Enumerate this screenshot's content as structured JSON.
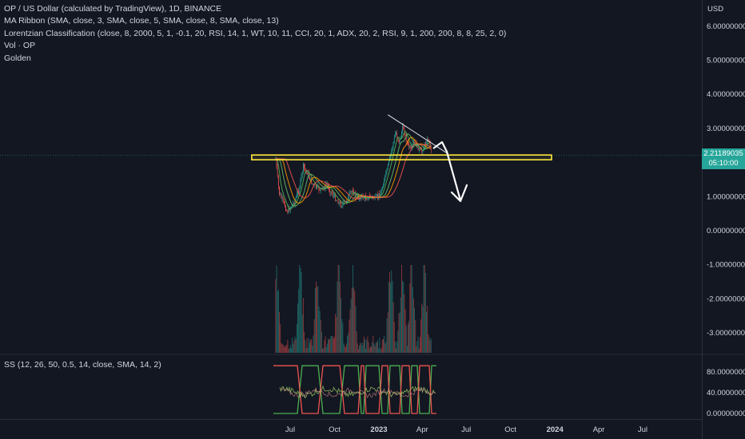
{
  "legend": {
    "symbol": "OP / US Dollar (calculated by TradingView), 1D, BINANCE",
    "ma_ribbon": "MA Ribbon (SMA, close, 3, SMA, close, 5, SMA, close, 8, SMA, close, 13)",
    "lorentzian": "Lorentzian Classification (close, 8, 2000, 5, 1, -0.1, 20, RSI, 14, 1, WT, 10, 11, CCI, 20, 1, ADX, 20, 2, RSI, 9, 1, 200, 200, 8, 8, 25, 2, 0)",
    "volume": "Vol · OP",
    "golden": "Golden"
  },
  "oscillator_legend": "SS (12, 26, 50, 0.5, 14, close, SMA, 14, 2)",
  "price_axis": {
    "currency": "USD",
    "ticks": [
      "6.00000000",
      "5.00000000",
      "4.00000000",
      "3.00000000",
      "1.00000000",
      "0.00000000",
      "-1.00000000",
      "-2.00000000",
      "-3.00000000"
    ],
    "tick_values": [
      6,
      5,
      4,
      3,
      1,
      0,
      -1,
      -2,
      -3
    ]
  },
  "oscillator_axis": {
    "ticks": [
      "80.00000000",
      "40.00000000",
      "0.00000000"
    ],
    "tick_values": [
      80,
      40,
      0
    ]
  },
  "current_price": {
    "value": "2.21189035",
    "countdown": "05:10:00"
  },
  "time_axis": {
    "labels": [
      "Jul",
      "Oct",
      "2023",
      "Apr",
      "Jul",
      "Oct",
      "2024",
      "Apr",
      "Jul"
    ],
    "bold": [
      false,
      false,
      true,
      false,
      false,
      false,
      true,
      false,
      false
    ]
  },
  "colors": {
    "background": "#131722",
    "up": "#26a69a",
    "down": "#ef5350",
    "zone": "#ffeb3b",
    "annotation": "#ffffff"
  },
  "chart_data": {
    "type": "candlestick",
    "instrument": "OP / US Dollar",
    "interval": "1D",
    "exchange": "BINANCE",
    "price_range": [
      -3.3,
      6.3
    ],
    "current_price": 2.21189035,
    "price_path": {
      "dates": [
        "2022-06-01",
        "2022-06-08",
        "2022-06-18",
        "2022-06-25",
        "2022-07-02",
        "2022-07-10",
        "2022-07-20",
        "2022-07-28",
        "2022-08-05",
        "2022-08-15",
        "2022-08-25",
        "2022-09-05",
        "2022-09-15",
        "2022-09-25",
        "2022-10-05",
        "2022-10-15",
        "2022-10-25",
        "2022-11-01",
        "2022-11-08",
        "2022-11-15",
        "2022-11-25",
        "2022-12-05",
        "2022-12-15",
        "2022-12-25",
        "2023-01-05",
        "2023-01-12",
        "2023-01-20",
        "2023-01-28",
        "2023-02-05",
        "2023-02-12",
        "2023-02-20",
        "2023-02-28",
        "2023-03-08",
        "2023-03-15",
        "2023-03-22",
        "2023-03-30",
        "2023-04-07",
        "2023-04-14",
        "2023-04-20"
      ],
      "close": [
        2.1,
        1.1,
        0.8,
        0.55,
        0.7,
        0.85,
        1.25,
        1.9,
        1.7,
        1.4,
        1.25,
        1.2,
        1.35,
        1.1,
        0.9,
        0.75,
        0.85,
        1.05,
        1.2,
        0.95,
        1.0,
        0.95,
        1.0,
        0.95,
        1.1,
        1.5,
        1.9,
        2.4,
        2.9,
        2.6,
        3.05,
        2.6,
        2.35,
        2.6,
        2.45,
        2.3,
        2.55,
        2.7,
        2.3
      ]
    },
    "resistance_zone": [
      2.08,
      2.22
    ],
    "trendline": {
      "from": [
        "2023-01-28",
        3.4
      ],
      "to": [
        "2023-05-25",
        2.25
      ]
    },
    "volume_peak_dates": [
      "2022-06-02",
      "2022-07-22",
      "2022-08-26",
      "2022-10-10",
      "2022-11-08",
      "2023-01-25",
      "2023-02-18",
      "2023-03-10",
      "2023-04-05"
    ],
    "oscillator": {
      "range": [
        -3,
        92
      ],
      "lines": [
        "green",
        "red",
        "mixed"
      ]
    }
  }
}
